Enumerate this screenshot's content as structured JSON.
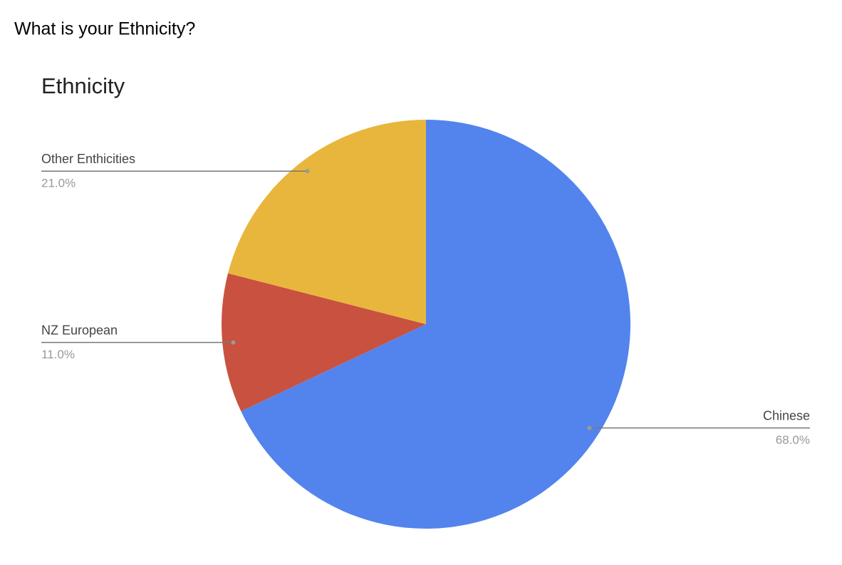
{
  "heading": "What is your Ethnicity?",
  "chart_data": {
    "type": "pie",
    "title": "Ethnicity",
    "categories": [
      "Chinese",
      "NZ European",
      "Other Enthicities"
    ],
    "values": [
      68,
      11,
      21
    ],
    "value_labels": [
      "68.0%",
      "11.0%",
      "21.0%"
    ],
    "colors": [
      "#5384ed",
      "#c95140",
      "#e8b63d"
    ]
  }
}
